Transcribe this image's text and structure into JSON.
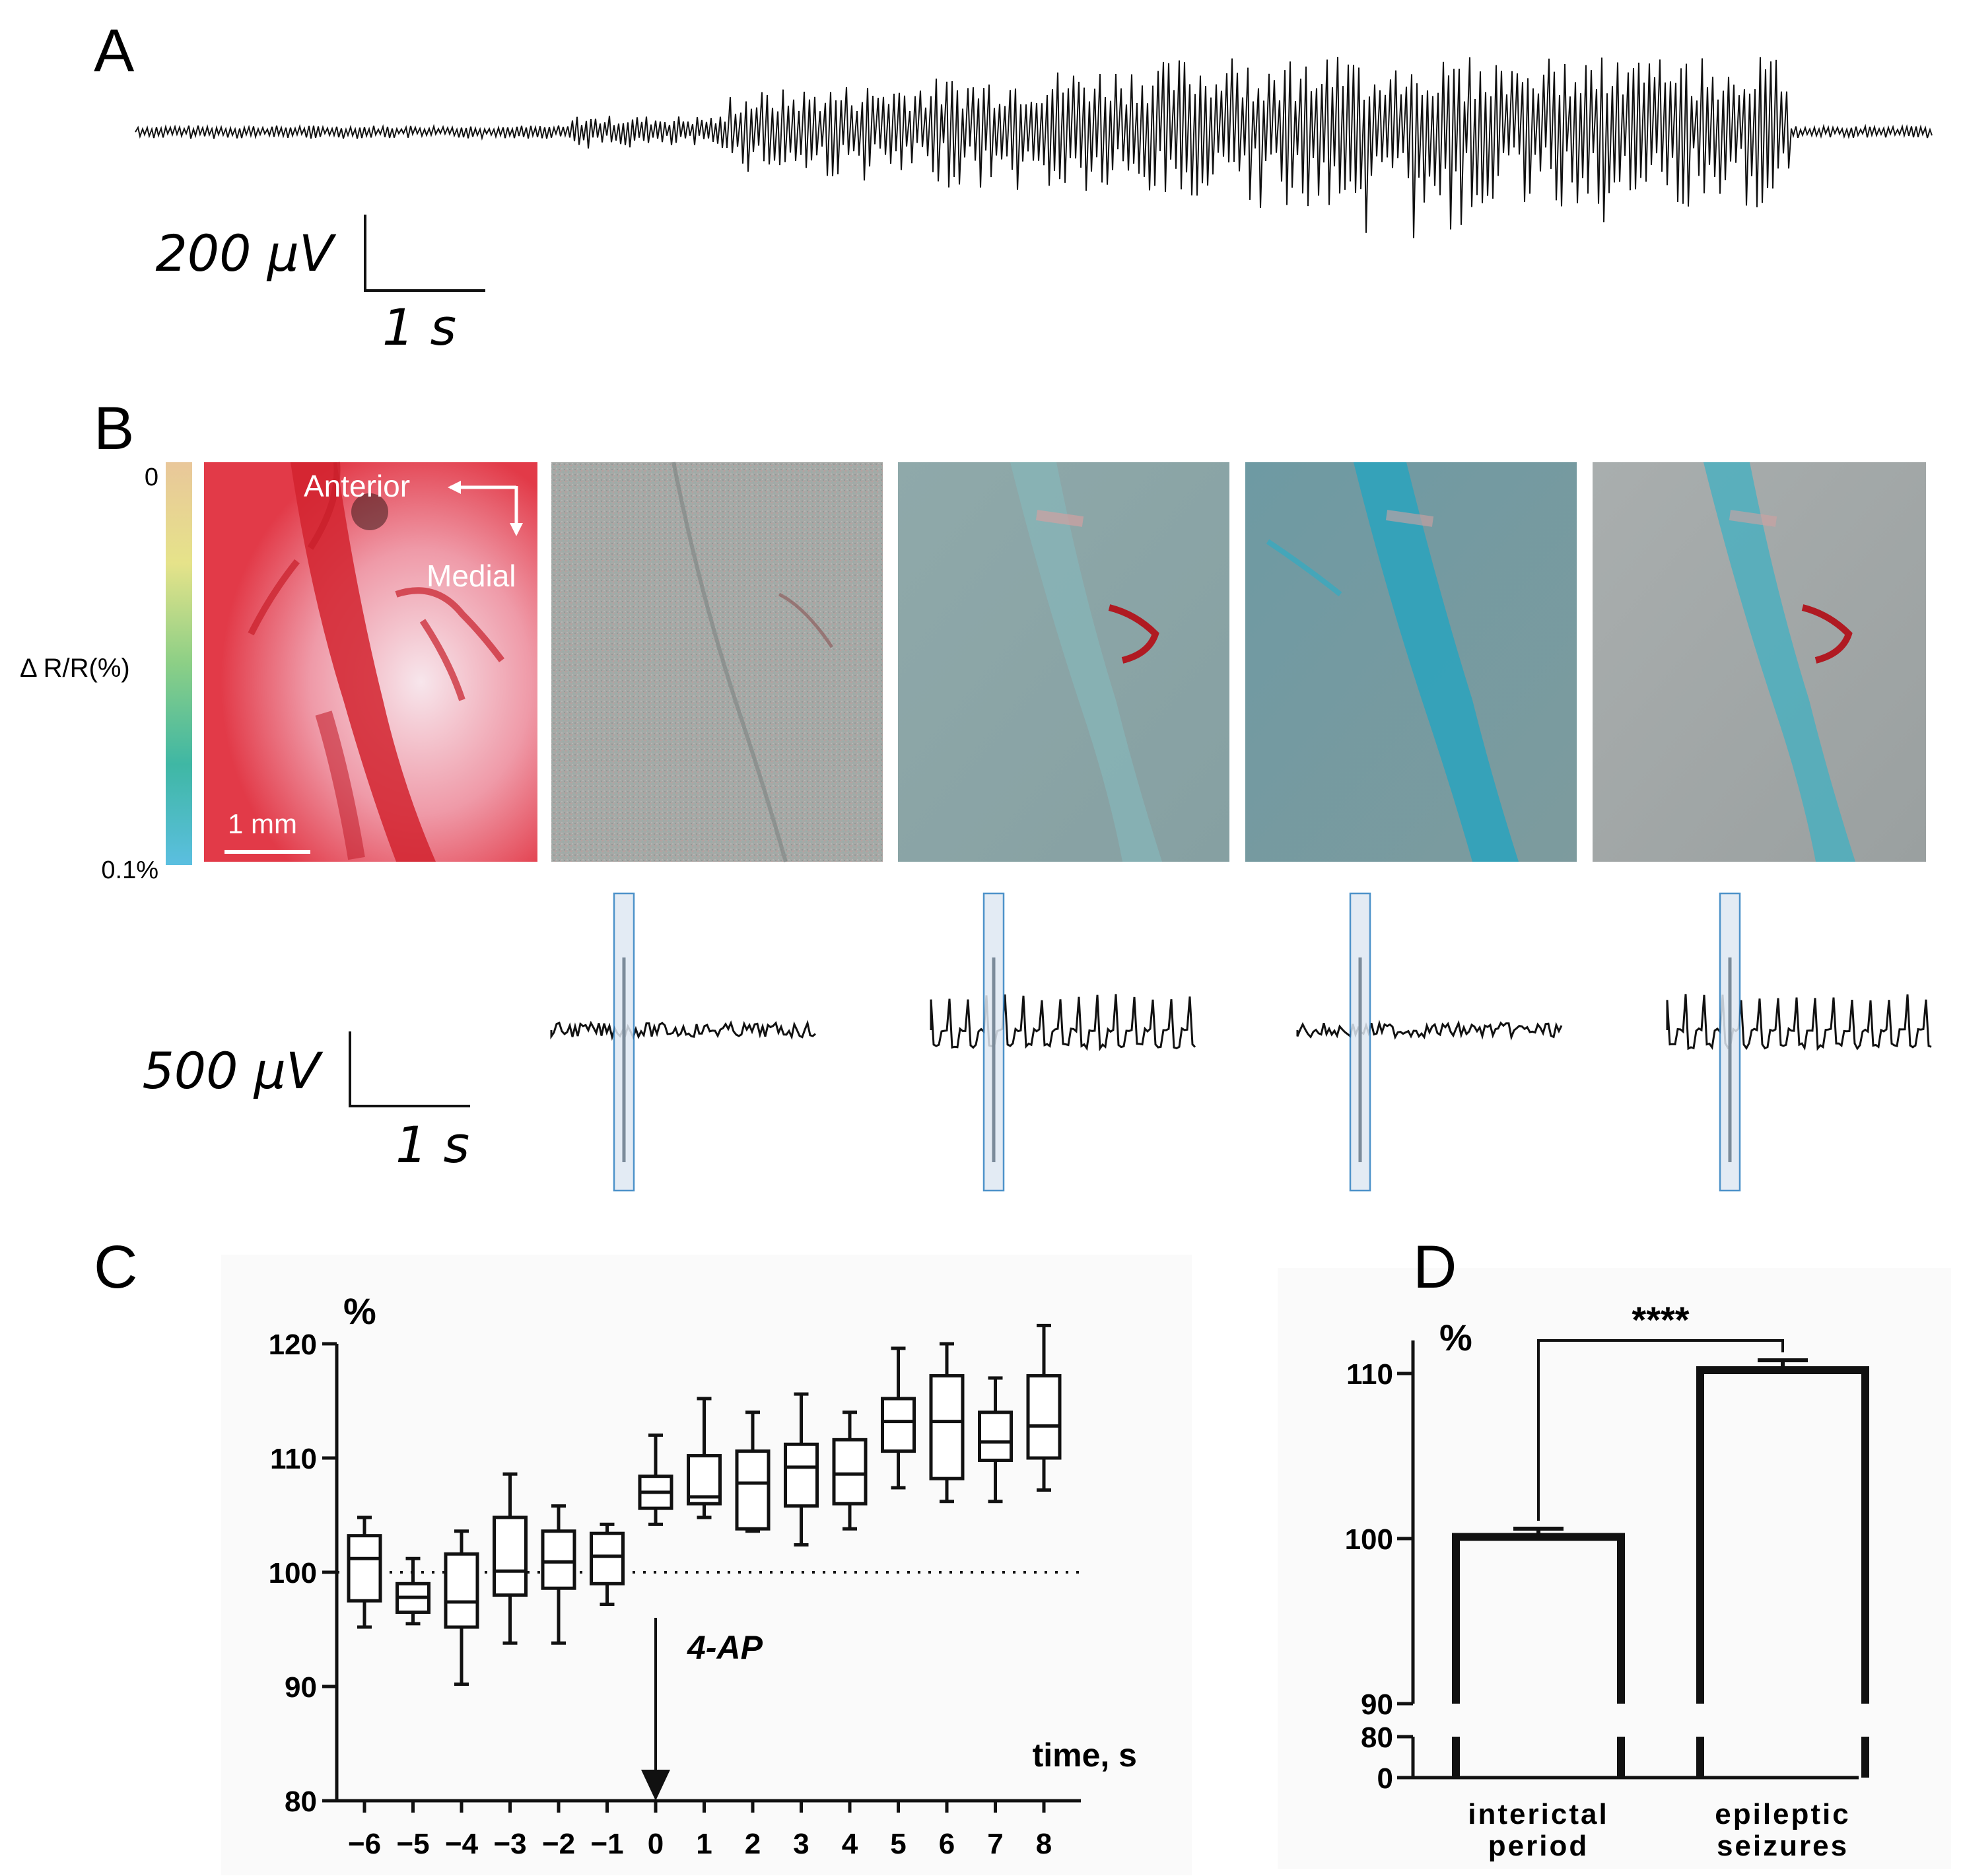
{
  "panels": {
    "A": {
      "letter": "A",
      "scale_voltage": "200 μV",
      "scale_time": "1 s"
    },
    "B": {
      "letter": "B",
      "colorbar": {
        "label": "Δ R/R(%)",
        "top": "0",
        "bottom": "0.1%",
        "colors": [
          "#e9c79a",
          "#e6e38a",
          "#8ccf86",
          "#3fb7a4",
          "#5bbfe0"
        ]
      },
      "photo": {
        "anterior": "Anterior",
        "medial": "Medial",
        "scale": "1 mm"
      },
      "scale_voltage": "500 μV",
      "scale_time": "1 s",
      "traces": [
        {
          "pattern": "quiet"
        },
        {
          "pattern": "spiking"
        },
        {
          "pattern": "quiet"
        },
        {
          "pattern": "spiking"
        }
      ],
      "highlight_color": "#2f7fc0"
    },
    "C": {
      "letter": "C",
      "unit": "%",
      "xlabel": "time, s",
      "annotation": "4-AP"
    },
    "D": {
      "letter": "D",
      "unit": "%",
      "significance": "****"
    }
  },
  "chart_data": [
    {
      "type": "box",
      "panel": "C",
      "ylabel": "%",
      "xlabel": "time, s",
      "ylim": [
        80,
        120
      ],
      "yticks": [
        80,
        90,
        100,
        110,
        120
      ],
      "reference_line": 100,
      "categories": [
        "−6",
        "−5",
        "−4",
        "−3",
        "−2",
        "−1",
        "0",
        "1",
        "2",
        "3",
        "4",
        "5",
        "6",
        "7",
        "8"
      ],
      "boxes": [
        {
          "min": 95.2,
          "q1": 97.5,
          "median": 101.2,
          "q3": 103.2,
          "max": 104.8
        },
        {
          "min": 95.5,
          "q1": 96.5,
          "median": 97.8,
          "q3": 99.0,
          "max": 101.2
        },
        {
          "min": 90.2,
          "q1": 95.2,
          "median": 97.4,
          "q3": 101.6,
          "max": 103.6
        },
        {
          "min": 93.8,
          "q1": 98.0,
          "median": 100.1,
          "q3": 104.8,
          "max": 108.6
        },
        {
          "min": 93.8,
          "q1": 98.6,
          "median": 100.9,
          "q3": 103.6,
          "max": 105.8
        },
        {
          "min": 97.2,
          "q1": 99.0,
          "median": 101.4,
          "q3": 103.4,
          "max": 104.2
        },
        {
          "min": 104.2,
          "q1": 105.6,
          "median": 107.0,
          "q3": 108.4,
          "max": 112.0
        },
        {
          "min": 104.8,
          "q1": 106.0,
          "median": 106.6,
          "q3": 110.2,
          "max": 115.2
        },
        {
          "min": 103.6,
          "q1": 103.8,
          "median": 107.8,
          "q3": 110.6,
          "max": 114.0
        },
        {
          "min": 102.4,
          "q1": 105.8,
          "median": 109.2,
          "q3": 111.2,
          "max": 115.6
        },
        {
          "min": 103.8,
          "q1": 106.0,
          "median": 108.6,
          "q3": 111.6,
          "max": 114.0
        },
        {
          "min": 107.4,
          "q1": 110.6,
          "median": 113.2,
          "q3": 115.2,
          "max": 119.6
        },
        {
          "min": 106.2,
          "q1": 108.2,
          "median": 113.2,
          "q3": 117.2,
          "max": 120.0
        },
        {
          "min": 106.2,
          "q1": 109.8,
          "median": 111.4,
          "q3": 114.0,
          "max": 117.0
        },
        {
          "min": 107.2,
          "q1": 110.0,
          "median": 112.8,
          "q3": 117.2,
          "max": 121.6
        }
      ],
      "annotations": [
        {
          "text": "4-AP",
          "at": "0"
        }
      ]
    },
    {
      "type": "bar",
      "panel": "D",
      "ylabel": "%",
      "broken_axis": true,
      "yticks": [
        0,
        80,
        90,
        100,
        110
      ],
      "categories": [
        "interictal\nperiod",
        "epileptic\nseizures"
      ],
      "category_lines": [
        [
          "interictal",
          "period"
        ],
        [
          "epileptic",
          "seizures"
        ]
      ],
      "values": [
        100.1,
        110.2
      ],
      "errors": [
        0.5,
        0.6
      ],
      "significance": "****"
    }
  ]
}
